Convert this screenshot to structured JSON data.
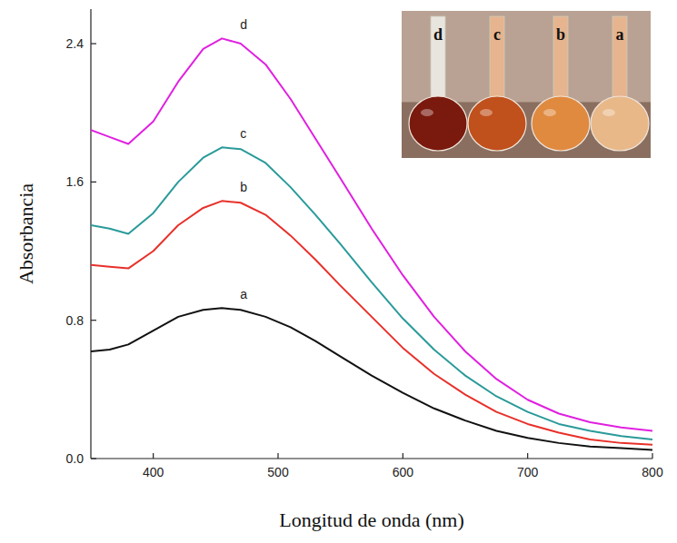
{
  "chart_data": {
    "type": "line",
    "x_label": "Longitud de onda (nm)",
    "y_label": "Absorbancia",
    "x": [
      350,
      365,
      380,
      400,
      420,
      440,
      455,
      470,
      490,
      510,
      530,
      550,
      575,
      600,
      625,
      650,
      675,
      700,
      725,
      750,
      775,
      800
    ],
    "series": [
      {
        "name": "a",
        "color": "#111111",
        "values": [
          0.62,
          0.63,
          0.66,
          0.74,
          0.82,
          0.86,
          0.87,
          0.86,
          0.82,
          0.76,
          0.68,
          0.59,
          0.48,
          0.38,
          0.29,
          0.22,
          0.16,
          0.12,
          0.09,
          0.07,
          0.06,
          0.05
        ]
      },
      {
        "name": "b",
        "color": "#e8302a",
        "values": [
          1.12,
          1.11,
          1.1,
          1.2,
          1.35,
          1.45,
          1.49,
          1.48,
          1.41,
          1.29,
          1.15,
          1.0,
          0.82,
          0.64,
          0.49,
          0.37,
          0.27,
          0.2,
          0.15,
          0.11,
          0.09,
          0.08
        ]
      },
      {
        "name": "c",
        "color": "#2a9a9a",
        "values": [
          1.35,
          1.33,
          1.3,
          1.42,
          1.6,
          1.74,
          1.8,
          1.79,
          1.71,
          1.57,
          1.41,
          1.24,
          1.02,
          0.81,
          0.63,
          0.48,
          0.36,
          0.27,
          0.2,
          0.16,
          0.13,
          0.11
        ]
      },
      {
        "name": "d",
        "color": "#e020e0",
        "values": [
          1.9,
          1.86,
          1.82,
          1.95,
          2.18,
          2.37,
          2.43,
          2.4,
          2.28,
          2.08,
          1.85,
          1.62,
          1.33,
          1.06,
          0.82,
          0.62,
          0.46,
          0.34,
          0.26,
          0.21,
          0.18,
          0.16
        ]
      }
    ],
    "xlim": [
      350,
      800
    ],
    "ylim": [
      0,
      2.6
    ],
    "xticks": [
      400,
      500,
      600,
      700,
      800
    ],
    "yticks": [
      {
        "value": 0,
        "label": "0.0"
      },
      0.8,
      1.6,
      2.4
    ],
    "grid": false
  }
}
